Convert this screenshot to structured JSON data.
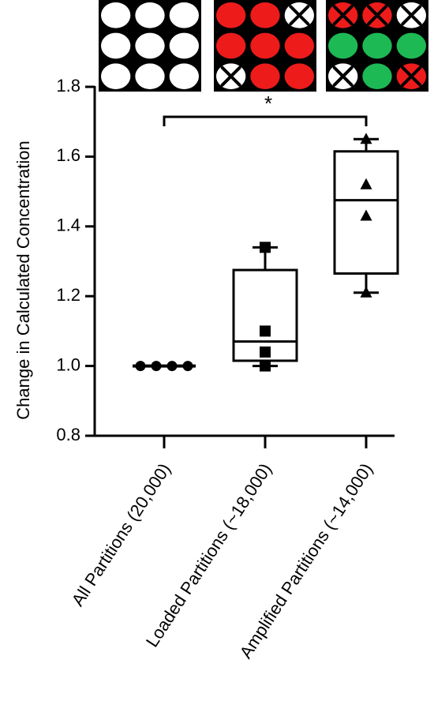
{
  "chart_data": {
    "type": "box",
    "title": "",
    "xlabel": "",
    "ylabel": "Change in Calculated Concentration",
    "ylim": [
      0.8,
      1.8
    ],
    "yticks": [
      "0.8",
      "1.0",
      "1.2",
      "1.4",
      "1.6",
      "1.8"
    ],
    "grid": false,
    "categories": [
      "All Partitions (20,000)",
      "Loaded Partitions (~18,000)",
      "Amplified Partitions (~14,000)"
    ],
    "series": [
      {
        "category": "All Partitions (20,000)",
        "marker": "circle",
        "points": [
          1.0,
          1.0,
          1.0,
          1.0
        ],
        "box": {
          "min": 1.0,
          "q1": 1.0,
          "median": 1.0,
          "q3": 1.0,
          "max": 1.0
        }
      },
      {
        "category": "Loaded Partitions (~18,000)",
        "marker": "square",
        "points": [
          1.34,
          1.1,
          1.04,
          1.0
        ],
        "box": {
          "min": 1.0,
          "q1": 1.015,
          "median": 1.07,
          "q3": 1.275,
          "max": 1.34
        }
      },
      {
        "category": "Amplified Partitions (~14,000)",
        "marker": "triangle",
        "points": [
          1.65,
          1.52,
          1.43,
          1.21
        ],
        "box": {
          "min": 1.21,
          "q1": 1.265,
          "median": 1.475,
          "q3": 1.615,
          "max": 1.65
        }
      }
    ],
    "annotations": [
      {
        "type": "significance",
        "from": 0,
        "to": 2,
        "y": 1.74,
        "label": "*"
      }
    ],
    "icons": [
      {
        "name": "all-partitions-grid",
        "cells": [
          "white",
          "white",
          "white",
          "white",
          "white",
          "white",
          "white",
          "white",
          "white"
        ]
      },
      {
        "name": "loaded-partitions-grid",
        "cells": [
          "red",
          "red",
          "x-white",
          "red",
          "red",
          "red",
          "x-white",
          "red",
          "red"
        ]
      },
      {
        "name": "amplified-partitions-grid",
        "cells": [
          "x-red",
          "x-red",
          "x-white",
          "green",
          "green",
          "green",
          "x-white",
          "green",
          "x-red"
        ]
      }
    ],
    "colors": {
      "red": "#ee1b1b",
      "green": "#1db954",
      "white": "#ffffff",
      "background": "#000000"
    }
  }
}
